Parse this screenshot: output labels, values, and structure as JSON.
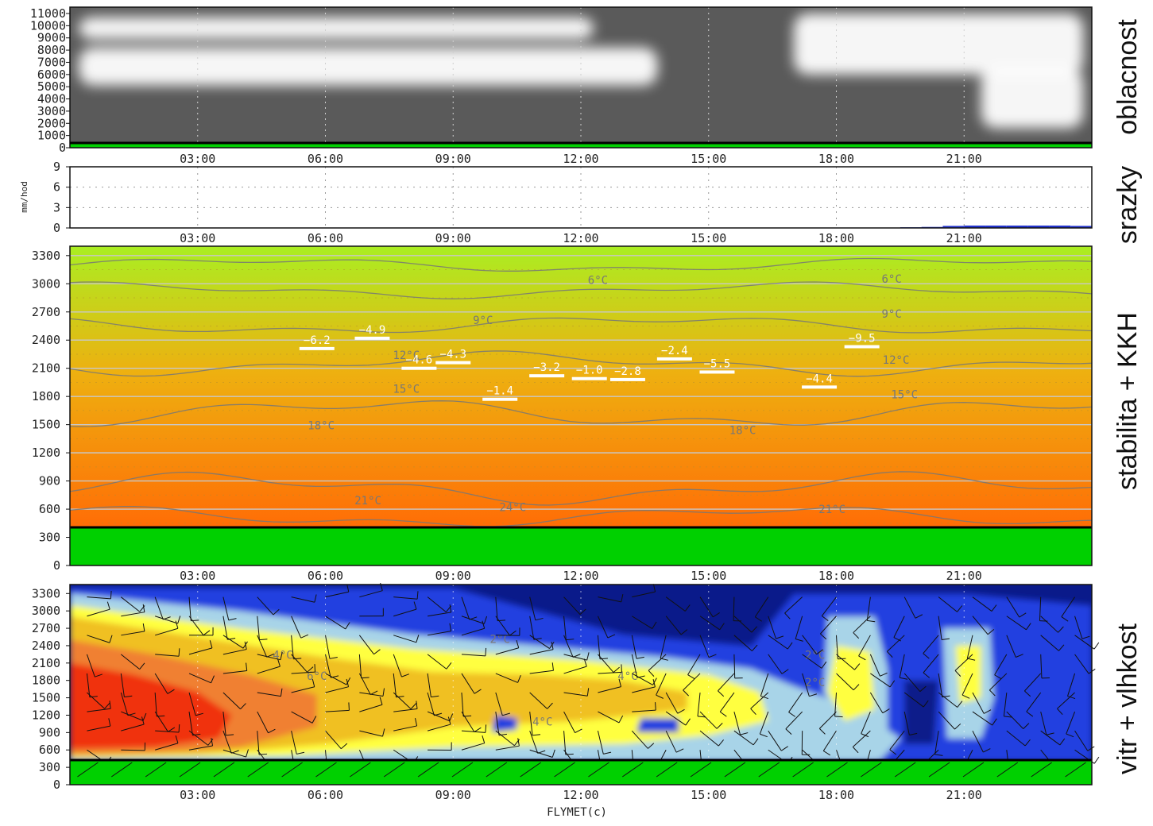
{
  "chart_data": [
    {
      "id": "clouds",
      "type": "heatmap",
      "side_label": "oblacnost",
      "xlabel": "",
      "ylabel": "",
      "x_ticks": [
        "03:00",
        "06:00",
        "09:00",
        "12:00",
        "15:00",
        "18:00",
        "21:00"
      ],
      "y_ticks": [
        0,
        1000,
        2000,
        3000,
        4000,
        5000,
        6000,
        7000,
        8000,
        9000,
        10000,
        11000
      ],
      "ylim": [
        0,
        11000
      ],
      "xlim_hours": [
        0,
        24
      ],
      "grid": "dotted vertical",
      "colors": {
        "background": "#5a5a5a",
        "cloud": "#ffffff",
        "ground": "#00d000"
      },
      "cloud_layers": [
        {
          "t_start": 0.2,
          "t_end": 12.3,
          "alt_low": 8900,
          "alt_high": 10700
        },
        {
          "t_start": 0.2,
          "t_end": 13.8,
          "alt_low": 5100,
          "alt_high": 8200
        },
        {
          "t_start": 17.0,
          "t_end": 23.8,
          "alt_low": 6000,
          "alt_high": 11000
        },
        {
          "t_start": 21.4,
          "t_end": 23.8,
          "alt_low": 1600,
          "alt_high": 6500
        }
      ]
    },
    {
      "id": "precip",
      "type": "bar",
      "side_label": "srazky",
      "ylabel": "mm/hod",
      "x_ticks": [
        "03:00",
        "06:00",
        "09:00",
        "12:00",
        "15:00",
        "18:00",
        "21:00"
      ],
      "y_ticks": [
        0,
        3,
        6,
        9
      ],
      "ylim": [
        0,
        9
      ],
      "grid": "dotted",
      "color": "#2233cc",
      "x": [
        19.5,
        20.0,
        20.5,
        21.0,
        21.5,
        22.0,
        22.5,
        23.0,
        23.5,
        24.0
      ],
      "values": [
        0.05,
        0.1,
        0.15,
        0.3,
        0.35,
        0.35,
        0.35,
        0.35,
        0.35,
        0.3
      ]
    },
    {
      "id": "stability",
      "type": "heatmap",
      "side_label": "stabilita + KKH",
      "x_ticks": [
        "03:00",
        "06:00",
        "09:00",
        "12:00",
        "15:00",
        "18:00",
        "21:00"
      ],
      "y_ticks": [
        0,
        300,
        600,
        900,
        1200,
        1500,
        1800,
        2100,
        2400,
        2700,
        3000,
        3300
      ],
      "ylim": [
        0,
        3400
      ],
      "ground_level": 400,
      "grid": "horizontal solid",
      "colors": {
        "top": "#aaee22",
        "mid": "#eeb010",
        "bottom": "#ff6d06",
        "ground": "#00d000"
      },
      "isotherms": [
        {
          "label": "6°C",
          "base": 3200,
          "amp": 55
        },
        {
          "label": "9°C",
          "base": 2930,
          "amp": 60
        },
        {
          "label": "12°C",
          "base": 2560,
          "amp": 70
        },
        {
          "label": "15°C",
          "base": 2150,
          "amp": 90
        },
        {
          "label": "18°C",
          "base": 1620,
          "amp": 110
        },
        {
          "label": "21°C",
          "base": 820,
          "amp": 120
        },
        {
          "label": "24°C",
          "base": 520,
          "amp": 80
        }
      ],
      "isotherm_label_positions": [
        {
          "label": "6°C",
          "t": 12.4,
          "alt": 3000
        },
        {
          "label": "6°C",
          "t": 19.3,
          "alt": 3010
        },
        {
          "label": "9°C",
          "t": 9.7,
          "alt": 2570
        },
        {
          "label": "9°C",
          "t": 19.3,
          "alt": 2640
        },
        {
          "label": "12°C",
          "t": 7.9,
          "alt": 2200
        },
        {
          "label": "12°C",
          "t": 19.4,
          "alt": 2150
        },
        {
          "label": "15°C",
          "t": 7.9,
          "alt": 1840
        },
        {
          "label": "15°C",
          "t": 19.6,
          "alt": 1780
        },
        {
          "label": "18°C",
          "t": 5.9,
          "alt": 1450
        },
        {
          "label": "18°C",
          "t": 15.8,
          "alt": 1400
        },
        {
          "label": "21°C",
          "t": 7.0,
          "alt": 650
        },
        {
          "label": "21°C",
          "t": 17.9,
          "alt": 560
        },
        {
          "label": "24°C",
          "t": 10.4,
          "alt": 580
        }
      ],
      "kkh": [
        {
          "t": 5.8,
          "alt": 2310,
          "label": "−6.2"
        },
        {
          "t": 7.1,
          "alt": 2420,
          "label": "−4.9"
        },
        {
          "t": 8.2,
          "alt": 2100,
          "label": "−4.6"
        },
        {
          "t": 9.0,
          "alt": 2160,
          "label": "−4.3"
        },
        {
          "t": 10.1,
          "alt": 1770,
          "label": "−1.4"
        },
        {
          "t": 11.2,
          "alt": 2020,
          "label": "−3.2"
        },
        {
          "t": 12.2,
          "alt": 1990,
          "label": "−1.0"
        },
        {
          "t": 13.1,
          "alt": 1980,
          "label": "−2.8"
        },
        {
          "t": 14.2,
          "alt": 2200,
          "label": "−2.4"
        },
        {
          "t": 15.2,
          "alt": 2060,
          "label": "−5.5"
        },
        {
          "t": 17.6,
          "alt": 1900,
          "label": "−4.4"
        },
        {
          "t": 18.6,
          "alt": 2330,
          "label": "−9.5"
        }
      ]
    },
    {
      "id": "wind",
      "type": "heatmap",
      "side_label": "vitr + vlhkost",
      "x_ticks": [
        "03:00",
        "06:00",
        "09:00",
        "12:00",
        "15:00",
        "18:00",
        "21:00"
      ],
      "y_ticks": [
        0,
        300,
        600,
        900,
        1200,
        1500,
        1800,
        2100,
        2400,
        2700,
        3000,
        3300
      ],
      "ylim": [
        0,
        3400
      ],
      "ground_level": 400,
      "colors": [
        "#0a1a8a",
        "#2040e0",
        "#a8d4e8",
        "#ffff40",
        "#f0c020",
        "#f08030",
        "#f03010"
      ],
      "contour_labels": [
        {
          "label": "2°C",
          "t": 10.1,
          "alt": 2450
        },
        {
          "label": "4°C",
          "t": 5.0,
          "alt": 2170
        },
        {
          "label": "6°C",
          "t": 5.8,
          "alt": 1810
        },
        {
          "label": "4°C",
          "t": 13.1,
          "alt": 1810
        },
        {
          "label": "4°C",
          "t": 11.1,
          "alt": 1020
        },
        {
          "label": "2°C",
          "t": 17.5,
          "alt": 2170
        },
        {
          "label": "2°C",
          "t": 17.5,
          "alt": 1700
        }
      ],
      "credit": "FLYMET(c)"
    }
  ]
}
